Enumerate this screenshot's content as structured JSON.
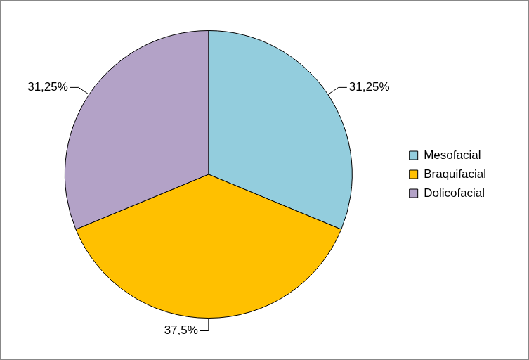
{
  "chart_data": {
    "type": "pie",
    "categories": [
      "Mesofacial",
      "Braquifacial",
      "Dolicofacial"
    ],
    "values": [
      31.25,
      37.5,
      31.25
    ],
    "value_labels": [
      "31,25%",
      "37,5%",
      "31,25%"
    ],
    "colors": [
      "#93CDDD",
      "#FFC000",
      "#B3A2C7"
    ],
    "data_labels": true,
    "legend": "right"
  }
}
